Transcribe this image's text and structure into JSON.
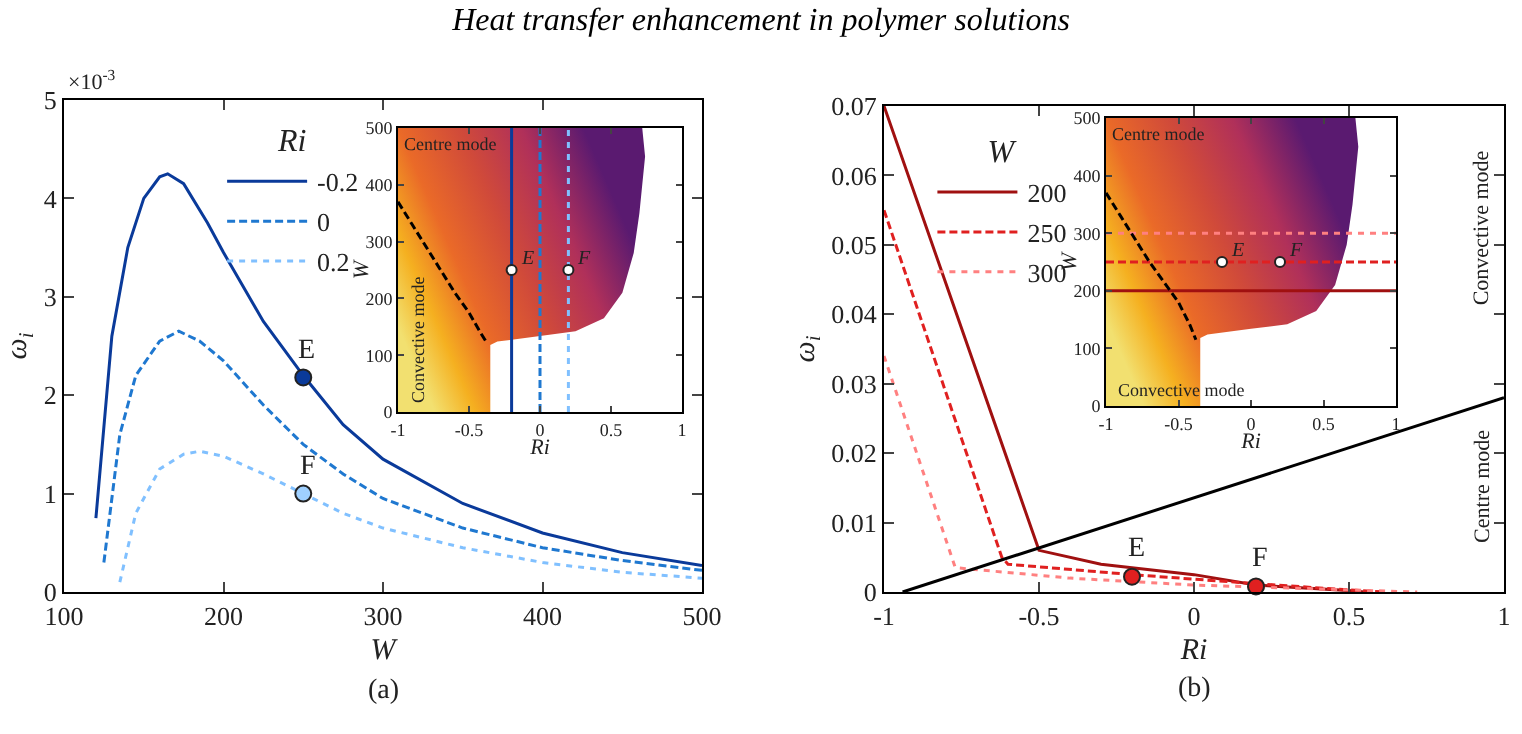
{
  "chart_data": [
    {
      "type": "line",
      "title": "Heat transfer enhancement in polymer solutions",
      "xlabel": "W",
      "ylabel": "ω$_{i}$",
      "legend_title": "Ri",
      "legend": "top left",
      "xlim": [
        100,
        500
      ],
      "xticks": [
        100,
        200,
        300,
        400,
        500
      ],
      "ylim": [
        0,
        5
      ],
      "yticks": [
        0,
        1,
        2,
        3,
        4,
        5
      ],
      "series": [
        {
          "name": "-0.2",
          "color": "#0a3a9a",
          "line_style": "solid",
          "x": [
            120,
            130,
            140,
            150,
            160,
            165,
            175,
            190,
            200,
            225,
            250,
            275,
            300,
            350,
            400,
            450,
            500
          ],
          "values": [
            0.75,
            2.6,
            3.5,
            4.0,
            4.22,
            4.25,
            4.15,
            3.75,
            3.45,
            2.75,
            2.2,
            1.7,
            1.35,
            0.9,
            0.6,
            0.4,
            0.27
          ]
        },
        {
          "name": "0",
          "color": "#1f78d0",
          "line_style": "dashed",
          "x": [
            125,
            135,
            145,
            160,
            172,
            185,
            200,
            225,
            250,
            275,
            300,
            350,
            400,
            450,
            500
          ],
          "values": [
            0.3,
            1.6,
            2.2,
            2.55,
            2.65,
            2.55,
            2.35,
            1.9,
            1.5,
            1.2,
            0.95,
            0.65,
            0.45,
            0.32,
            0.22
          ]
        },
        {
          "name": "0.2",
          "color": "#80c0ff",
          "line_style": "dotted",
          "x": [
            135,
            145,
            160,
            175,
            185,
            200,
            225,
            250,
            275,
            300,
            350,
            400,
            450,
            500
          ],
          "values": [
            0.1,
            0.8,
            1.25,
            1.4,
            1.43,
            1.38,
            1.2,
            1.0,
            0.8,
            0.65,
            0.45,
            0.3,
            0.2,
            0.14
          ]
        },
        {
          "type": "scatter",
          "color": "#0a3a9a",
          "x": [
            250
          ],
          "values": [
            2.18
          ]
        },
        {
          "type": "scatter",
          "color": "#9fd0ff",
          "x": [
            250
          ],
          "values": [
            1.0
          ]
        }
      ],
      "annotations": [
        {
          "text": "E",
          "x": 250,
          "y": 2.18
        },
        {
          "text": "F",
          "x": 250,
          "y": 1.0
        },
        "×10$^{-3}$",
        "(a)"
      ]
    },
    {
      "type": "line",
      "xlabel": "Ri",
      "ylabel": "W",
      "xlim": [
        -1,
        1
      ],
      "xticks": [
        -1,
        -0.5,
        0,
        0.5,
        1
      ],
      "ylim": [
        0,
        500
      ],
      "yticks": [
        0,
        100,
        200,
        300,
        400,
        500
      ],
      "series": [
        {
          "color": "#000000",
          "line_style": "dashed",
          "x": [
            -1,
            -0.9,
            -0.8,
            -0.7,
            -0.6,
            -0.5,
            -0.42,
            -0.37
          ],
          "values": [
            370,
            330,
            290,
            250,
            210,
            175,
            140,
            120
          ]
        },
        {
          "type": "scatter",
          "color": "#ffffff",
          "x": [
            -0.2,
            0.2
          ],
          "values": [
            250,
            250
          ]
        }
      ],
      "ref_lines": [
        {
          "axis": "x",
          "value": -0.2,
          "color": "#0a3a9a",
          "line_style": "solid"
        },
        {
          "axis": "x",
          "value": 0,
          "color": "#1f78d0",
          "line_style": "dashed"
        },
        {
          "axis": "x",
          "value": 0.2,
          "color": "#80c0ff",
          "line_style": "dotted"
        }
      ],
      "annotations": [
        {
          "text": "E",
          "x": -0.2,
          "y": 250
        },
        {
          "text": "F",
          "x": 0.2,
          "y": 250
        },
        "Centre mode",
        "Convective mode"
      ]
    },
    {
      "type": "line",
      "xlabel": "Ri",
      "ylabel": "ω$_{i}$",
      "legend_title": "W",
      "legend": "top left",
      "xlim": [
        -1,
        1
      ],
      "xticks": [
        -1,
        -0.5,
        0,
        0.5,
        1
      ],
      "ylim": [
        0,
        0.07
      ],
      "yticks": [
        0,
        0.01,
        0.02,
        0.03,
        0.04,
        0.05,
        0.06,
        0.07
      ],
      "series": [
        {
          "name": "200",
          "color": "#a01010",
          "line_style": "solid",
          "x": [
            -1,
            -0.5,
            -0.3,
            0,
            0.2,
            0.5,
            0.55
          ],
          "values": [
            0.07,
            0.006,
            0.004,
            0.0025,
            0.001,
            0.0002,
            0
          ]
        },
        {
          "name": "250",
          "color": "#e02020",
          "line_style": "dashed",
          "x": [
            -1,
            -0.62,
            -0.6,
            -0.2,
            0.2,
            0.5,
            0.62
          ],
          "values": [
            0.055,
            0.005,
            0.004,
            0.0025,
            0.0012,
            0.0003,
            0
          ]
        },
        {
          "name": "300",
          "color": "#ff8080",
          "line_style": "dotted",
          "x": [
            -1,
            -0.77,
            -0.4,
            0,
            0.5,
            0.72
          ],
          "values": [
            0.034,
            0.0035,
            0.002,
            0.001,
            0.0003,
            0
          ]
        },
        {
          "color": "#000000",
          "line_style": "solid",
          "x": [
            -0.94,
            1
          ],
          "values": [
            0,
            0.028
          ]
        },
        {
          "type": "scatter",
          "color": "#e02020",
          "x": [
            -0.2,
            0.2
          ],
          "values": [
            0.0022,
            0.0008
          ]
        }
      ],
      "annotations": [
        {
          "text": "E",
          "x": -0.2,
          "y": 0.0022
        },
        {
          "text": "F",
          "x": 0.2,
          "y": 0.0008
        },
        "Convective mode",
        "Centre mode",
        "(b)"
      ]
    },
    {
      "type": "line",
      "xlabel": "Ri",
      "ylabel": "W",
      "xlim": [
        -1,
        1
      ],
      "xticks": [
        -1,
        -0.5,
        0,
        0.5,
        1
      ],
      "ylim": [
        0,
        500
      ],
      "yticks": [
        0,
        100,
        200,
        300,
        400,
        500
      ],
      "series": [
        {
          "color": "#000000",
          "line_style": "dashed",
          "x": [
            -1,
            -0.9,
            -0.8,
            -0.7,
            -0.6,
            -0.5,
            -0.42,
            -0.38
          ],
          "values": [
            370,
            330,
            290,
            250,
            215,
            180,
            140,
            115
          ]
        },
        {
          "type": "scatter",
          "color": "#ffffff",
          "x": [
            -0.2,
            0.2
          ],
          "values": [
            250,
            250
          ]
        }
      ],
      "ref_lines": [
        {
          "axis": "y",
          "value": 200,
          "color": "#a01010",
          "line_style": "solid"
        },
        {
          "axis": "y",
          "value": 250,
          "color": "#e02020",
          "line_style": "dashed"
        },
        {
          "axis": "y",
          "value": 300,
          "color": "#ff8080",
          "line_style": "dotted"
        }
      ],
      "annotations": [
        {
          "text": "E",
          "x": -0.2,
          "y": 250
        },
        {
          "text": "F",
          "x": 0.2,
          "y": 250
        },
        "Centre mode",
        "Convective mode"
      ]
    }
  ]
}
